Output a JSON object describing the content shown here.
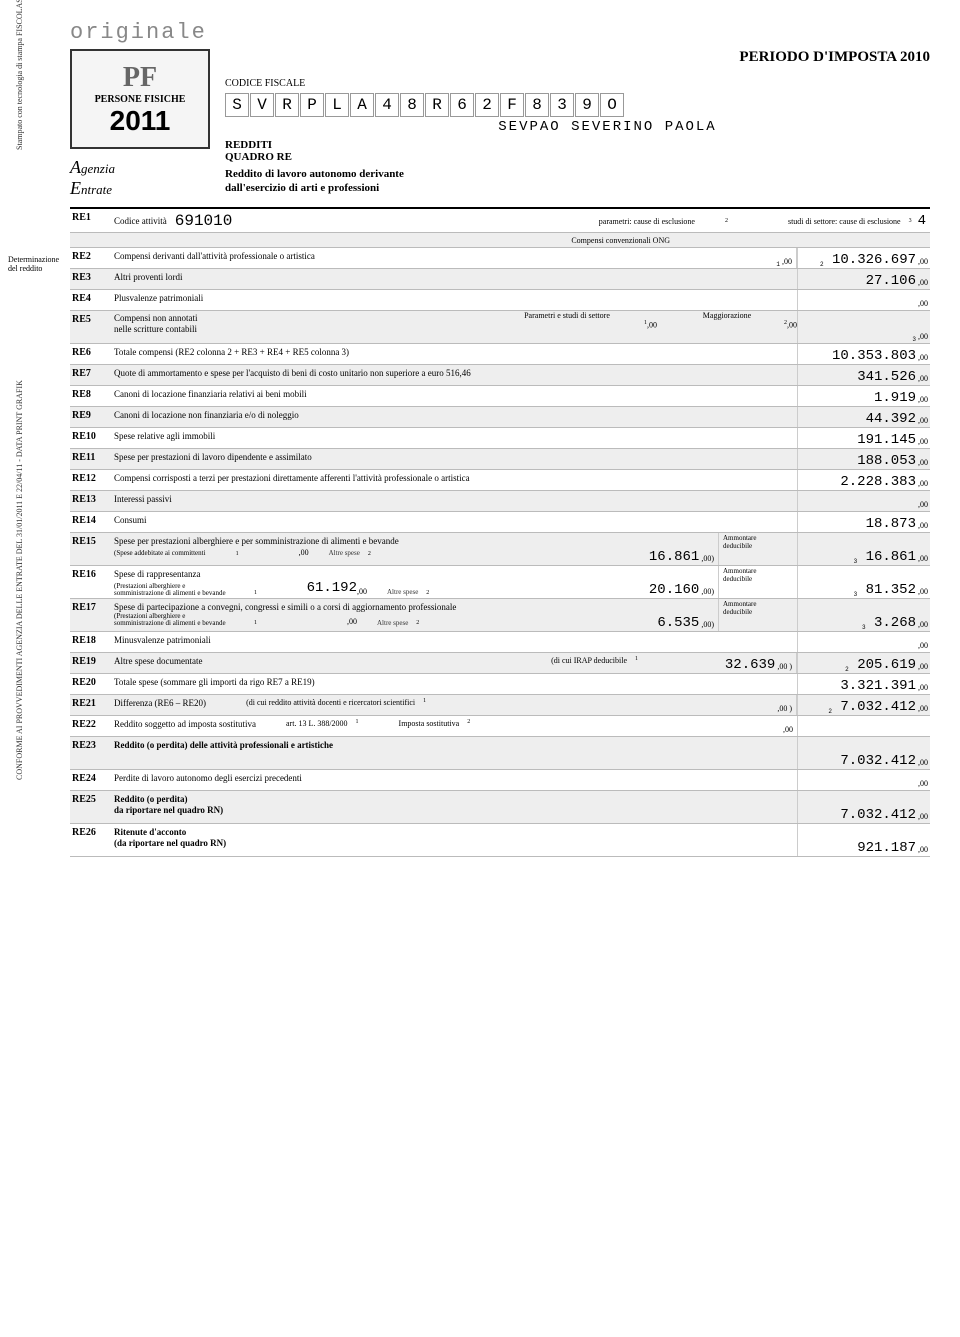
{
  "header": {
    "stamp": "originale",
    "periodo": "PERIODO D'IMPOSTA 2010",
    "codfisc_label": "CODICE FISCALE",
    "cf": [
      "S",
      "V",
      "R",
      "P",
      "L",
      "A",
      "4",
      "8",
      "R",
      "6",
      "2",
      "F",
      "8",
      "3",
      "9",
      "O"
    ],
    "cf_name": "SEVPAO SEVERINO PAOLA",
    "redditi": "REDDITI",
    "quadro": "QUADRO RE",
    "subtitle": "Reddito di lavoro autonomo derivante\ndall'esercizio di arti e professioni",
    "logo_line1": "PERSONE FISICHE",
    "logo_year": "2011",
    "agenzia": "genzia",
    "entrate": "ntrate"
  },
  "sidetext1": "Stampato con tecnologia di stampa FISCOLASER www.dataprintgrafik.it",
  "sidetext2": "CONFORME AI PROVVEDIMENTI AGENZIA DELLE ENTRATE DEL 31/01/2011 E 22/04/11 - DATA PRINT GRAFIK",
  "sideblock": "Determinazione\ndel reddito",
  "re1": {
    "code": "RE1",
    "label": "Codice attività",
    "activity": "691010",
    "param_label": "parametri: cause di esclusione",
    "studi_label": "studi di settore: cause di esclusione",
    "studi_val": "4",
    "ong_label": "Compensi convenzionali ONG"
  },
  "rows": {
    "re2": {
      "code": "RE2",
      "desc": "Compensi derivanti dall'attività professionale o artistica",
      "mid": ",00",
      "val": "10.326.697"
    },
    "re3": {
      "code": "RE3",
      "desc": "Altri proventi lordi",
      "val": "27.106"
    },
    "re4": {
      "code": "RE4",
      "desc": "Plusvalenze patrimoniali",
      "val": ""
    },
    "re5": {
      "code": "RE5",
      "desc1": "Compensi non annotati",
      "desc2": "nelle scritture contabili",
      "lbl1": "Parametri e studi di settore",
      "lbl2": "Maggiorazione",
      "val": ""
    },
    "re6": {
      "code": "RE6",
      "desc": "Totale compensi (RE2 colonna 2 + RE3 + RE4 + RE5 colonna 3)",
      "val": "10.353.803"
    },
    "re7": {
      "code": "RE7",
      "desc": "Quote di ammortamento e spese per l'acquisto di beni di costo unitario non superiore a euro 516,46",
      "val": "341.526"
    },
    "re8": {
      "code": "RE8",
      "desc": "Canoni di locazione finanziaria relativi ai beni mobili",
      "val": "1.919"
    },
    "re9": {
      "code": "RE9",
      "desc": "Canoni di locazione non finanziaria e/o di noleggio",
      "val": "44.392"
    },
    "re10": {
      "code": "RE10",
      "desc": "Spese relative agli immobili",
      "val": "191.145"
    },
    "re11": {
      "code": "RE11",
      "desc": "Spese per prestazioni di lavoro dipendente e assimilato",
      "val": "188.053"
    },
    "re12": {
      "code": "RE12",
      "desc": "Compensi corrisposti a terzi per prestazioni direttamente afferenti l'attività professionale o artistica",
      "val": "2.228.383"
    },
    "re13": {
      "code": "RE13",
      "desc": "Interessi passivi",
      "val": ""
    },
    "re14": {
      "code": "RE14",
      "desc": "Consumi",
      "val": "18.873"
    },
    "re15": {
      "code": "RE15",
      "desc1": "Spese per prestazioni alberghiere e per somministrazione di alimenti e bevande",
      "desc2": "(Spese addebitate ai committenti",
      "lbl2": "Altre spese",
      "mid2": "16.861",
      "lbl3": "Ammontare\ndeducibile",
      "val": "16.861"
    },
    "re16": {
      "code": "RE16",
      "desc1": "Spese di rappresentanza",
      "desc2": "(Prestazioni alberghiere e\nsomministrazione di alimenti e bevande",
      "mid1": "61.192",
      "lbl2": "Altre spese",
      "mid2": "20.160",
      "lbl3": "Ammontare\ndeducibile",
      "val": "81.352"
    },
    "re17": {
      "code": "RE17",
      "desc1": "Spese di partecipazione a convegni, congressi e simili o a corsi di aggiornamento professionale",
      "desc2": "(Prestazioni alberghiere e\nsomministrazione di alimenti e bevande",
      "lbl2": "Altre spese",
      "mid2": "6.535",
      "lbl3": "Ammontare\ndeducibile",
      "val": "3.268"
    },
    "re18": {
      "code": "RE18",
      "desc": "Minusvalenze patrimoniali",
      "val": ""
    },
    "re19": {
      "code": "RE19",
      "desc": "Altre spese documentate",
      "lbl1": "(di cui IRAP deducibile",
      "mid": "32.639",
      "val": "205.619"
    },
    "re20": {
      "code": "RE20",
      "desc": "Totale spese (sommare gli importi da rigo RE7 a RE19)",
      "val": "3.321.391"
    },
    "re21": {
      "code": "RE21",
      "desc": "Differenza (RE6 – RE20)",
      "lbl1": "(di cui reddito attività docenti e ricercatori scientifici",
      "mid": ",00",
      "val": "7.032.412"
    },
    "re22": {
      "code": "RE22",
      "desc": "Reddito soggetto ad imposta sostitutiva",
      "lbl1": "art. 13 L. 388/2000",
      "lbl2": "Imposta sostitutiva",
      "mid": ",00",
      "val": ""
    },
    "re23": {
      "code": "RE23",
      "desc": "Reddito (o perdita) delle attività professionali e artistiche",
      "val": "7.032.412"
    },
    "re24": {
      "code": "RE24",
      "desc": "Perdite di lavoro autonomo degli esercizi precedenti",
      "val": ""
    },
    "re25": {
      "code": "RE25",
      "desc": "Reddito (o perdita)\nda riportare nel quadro RN)",
      "val": "7.032.412"
    },
    "re26": {
      "code": "RE26",
      "desc": "Ritenute d'acconto\n(da riportare nel quadro RN)",
      "val": "921.187"
    }
  }
}
